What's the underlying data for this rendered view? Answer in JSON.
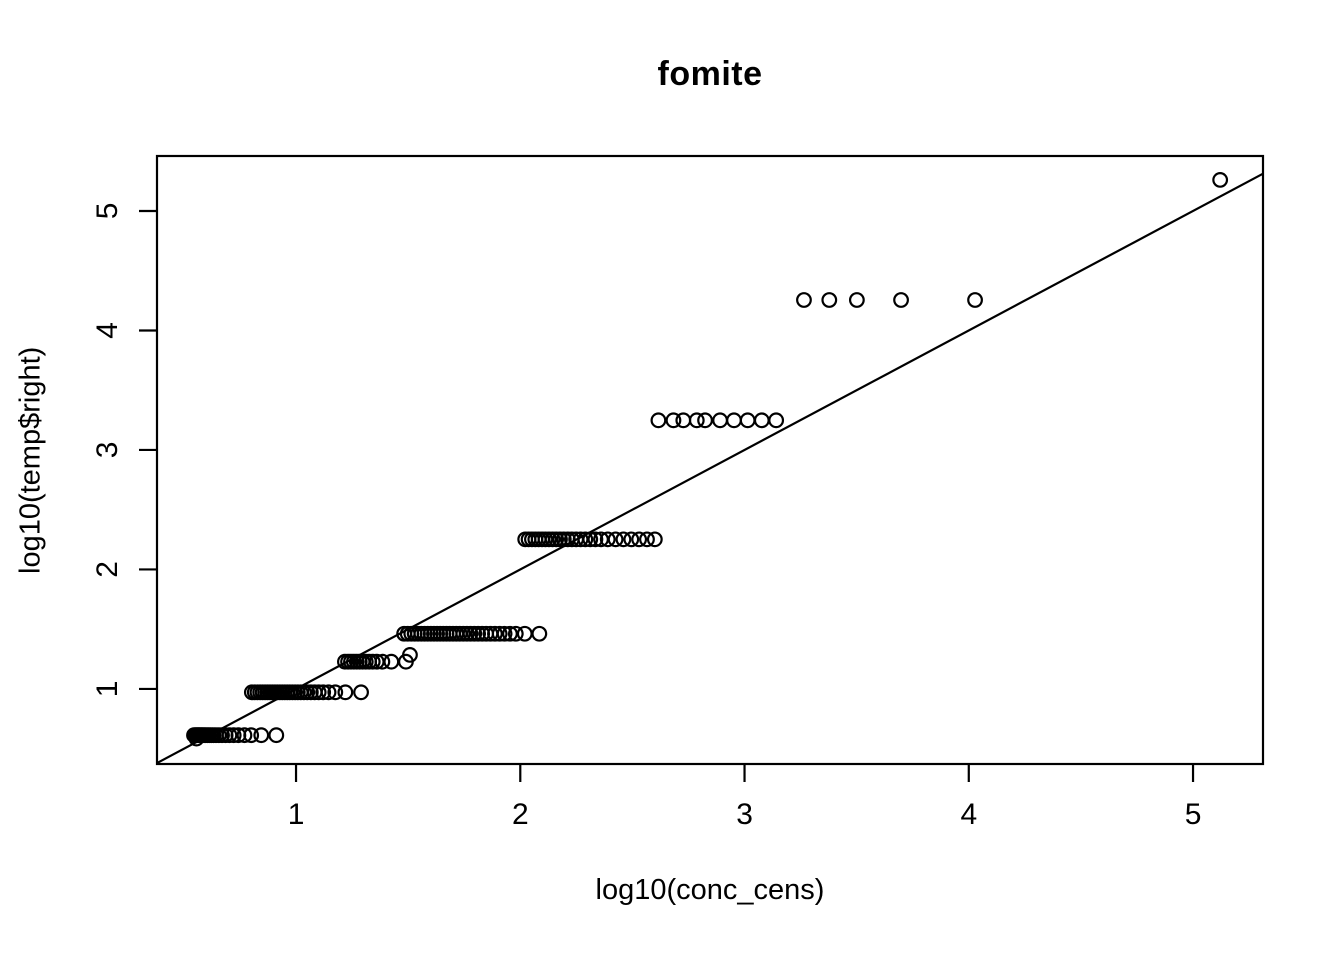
{
  "figure": {
    "background": "#ffffff",
    "foreground": "#000000"
  },
  "chart_data": {
    "type": "scatter",
    "title": "fomite",
    "xlabel": "log10(conc_cens)",
    "ylabel": "log10(temp$right)",
    "xlim": [
      0.38,
      5.312
    ],
    "ylim": [
      0.372,
      5.46
    ],
    "xticks": [
      1,
      2,
      3,
      4,
      5
    ],
    "yticks": [
      1,
      2,
      3,
      4,
      5
    ],
    "grid": false,
    "legend": null,
    "marker": {
      "shape": "open-circle",
      "color": "#000000",
      "radius_px": 6.8,
      "stroke_px": 2.2
    },
    "abline": {
      "intercept": 0,
      "slope": 1,
      "description": "identity line y = x"
    },
    "bands": [
      {
        "name": "censored-band-y0.61",
        "y": 0.613,
        "x": [
          0.545,
          0.551,
          0.557,
          0.562,
          0.567,
          0.572,
          0.578,
          0.584,
          0.59,
          0.597,
          0.605,
          0.613,
          0.622,
          0.632,
          0.643,
          0.656,
          0.67,
          0.686,
          0.703,
          0.722,
          0.743,
          0.77,
          0.8,
          0.845,
          0.912
        ]
      },
      {
        "name": "offset-point-y0.585",
        "y": 0.585,
        "x": [
          0.556
        ]
      },
      {
        "name": "censored-band-y0.97",
        "y": 0.972,
        "x": [
          0.803,
          0.816,
          0.828,
          0.84,
          0.851,
          0.862,
          0.873,
          0.884,
          0.895,
          0.906,
          0.917,
          0.928,
          0.939,
          0.95,
          0.961,
          0.972,
          0.984,
          0.996,
          1.008,
          1.021,
          1.035,
          1.05,
          1.066,
          1.083,
          1.101,
          1.121,
          1.145,
          1.175,
          1.22,
          1.29
        ]
      },
      {
        "name": "censored-band-y1.23",
        "y": 1.228,
        "x": [
          1.218,
          1.232,
          1.245,
          1.258,
          1.271,
          1.284,
          1.297,
          1.311,
          1.326,
          1.342,
          1.36,
          1.385,
          1.425,
          1.49
        ]
      },
      {
        "name": "offset-point-y1.285",
        "y": 1.285,
        "x": [
          1.508
        ]
      },
      {
        "name": "censored-band-y1.46",
        "y": 1.462,
        "x": [
          1.482,
          1.498,
          1.514,
          1.529,
          1.544,
          1.559,
          1.573,
          1.587,
          1.601,
          1.615,
          1.629,
          1.643,
          1.657,
          1.671,
          1.685,
          1.7,
          1.715,
          1.73,
          1.746,
          1.762,
          1.778,
          1.795,
          1.812,
          1.83,
          1.848,
          1.867,
          1.887,
          1.908,
          1.93,
          1.954,
          1.98,
          2.02,
          2.085
        ]
      },
      {
        "name": "censored-band-y2.25",
        "y": 2.252,
        "x": [
          2.022,
          2.037,
          2.052,
          2.067,
          2.082,
          2.097,
          2.112,
          2.128,
          2.144,
          2.16,
          2.177,
          2.194,
          2.212,
          2.23,
          2.249,
          2.269,
          2.29,
          2.312,
          2.335,
          2.36,
          2.39,
          2.425,
          2.46,
          2.495,
          2.53,
          2.565,
          2.6
        ]
      },
      {
        "name": "censored-band-y3.25",
        "y": 3.248,
        "x": [
          2.616,
          2.683,
          2.727,
          2.787,
          2.824,
          2.891,
          2.953,
          3.014,
          3.077,
          3.141
        ]
      },
      {
        "name": "censored-band-y4.26",
        "y": 4.255,
        "x": [
          3.265,
          3.378,
          3.501,
          3.698,
          4.028
        ]
      },
      {
        "name": "top-point-y5.26",
        "y": 5.26,
        "x": [
          5.121
        ]
      }
    ]
  }
}
